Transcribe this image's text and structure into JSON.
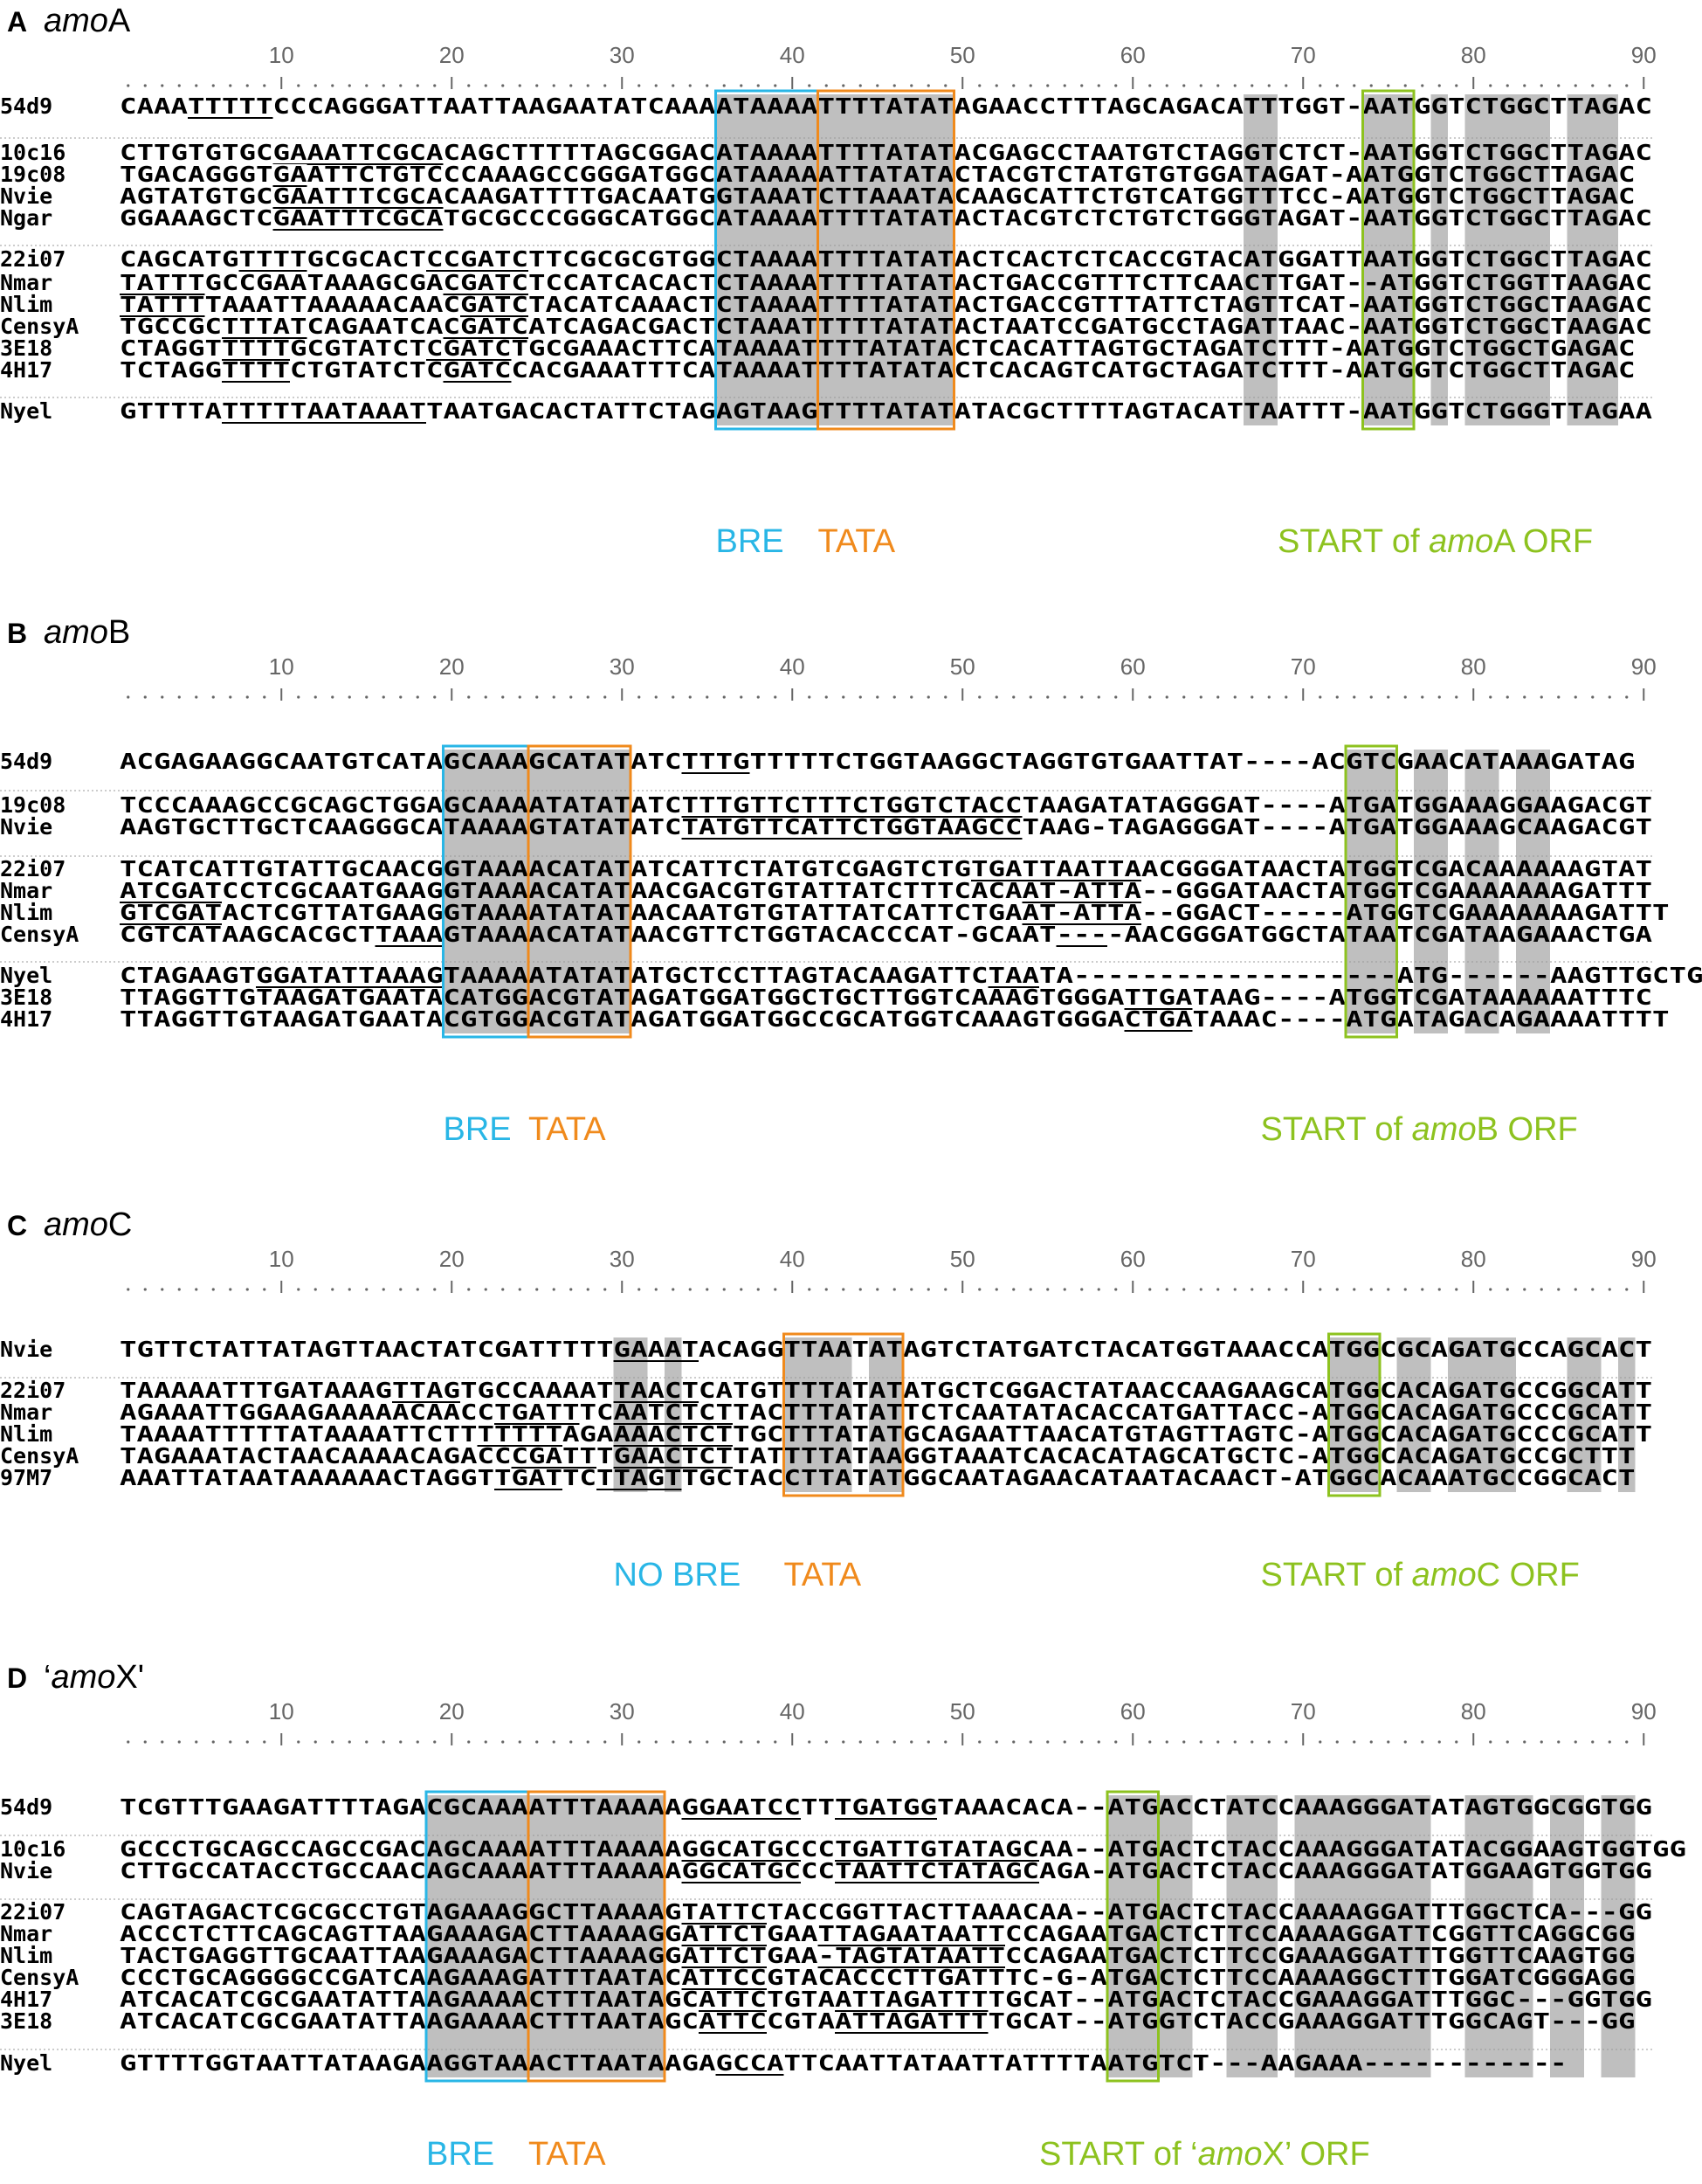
{
  "colors": {
    "bre": "#29b6e6",
    "tata": "#f08a1c",
    "start": "#8dc21f",
    "shade": "#bfbfbf",
    "purple": "#9b30c8",
    "cyan_text": "#29b6e6"
  },
  "ruler": {
    "ticks": [
      "10",
      "20",
      "30",
      "40",
      "50",
      "60",
      "70",
      "80",
      "90"
    ]
  },
  "panels": [
    {
      "id": "A",
      "letter": "A",
      "title_italic": "amo",
      "title_rest": "A",
      "seqs": [
        {
          "name": "54d9",
          "seq": "CAAATTTTTCCCAGGGATTAATTAAGAATATCAAAATAAAATTTTATATAGAACCTTTAGCAGACATTTGGT-AATGGTCTGGCTTAGAC"
        },
        {
          "name": "10c16",
          "seq": "CTTGTGTGCGAAATTCGCACAGCTTTTTAGCGGACATAAAATTTTATATACGAGCCTAATGTCTAGGTCTCT-AATGGTCTGGCTTAGAC"
        },
        {
          "name": "19c08",
          "seq": "TGACAGGGTGAATTCTGTCCCAAAGCCGGGATGGCATAAAAATTATATACTACGTCTATGTGTGGATAGAT-AATGGTCTGGCTTAGAC"
        },
        {
          "name": "Nvie",
          "seq": "AGTATGTGCGAATTTCGCACAAGATTTTGACAATGGTAAATCTTAAATACAAGCATTCTGTCATGGTTTCC-AATGGTCTGGCTTAGAC"
        },
        {
          "name": "Ngar",
          "seq": "GGAAAGCTCGAATTTCGCATGCGCCCGGGCATGGCATAAAATTTTATATACTACGTCTCTGTCTGGGTAGAT-AATGGTCTGGCTTAGAC"
        },
        {
          "name": "22i07",
          "seq": "CAGCATGTTTTGCGCACTCCGATCTTCGCGCGTGGCTAAAATTTTATATACTCACTCTCACCGTACATGGATTAATGGTCTGGCTTAGAC"
        },
        {
          "name": "Nmar",
          "seq": "TATTTGCCGAATAAAGCGACGATCTCCATCACACTCTAAAATTTTATATACTGACCGTTTCTTCAACTTGAT--ATGGTCTGGTTAAGAC"
        },
        {
          "name": "Nlim",
          "seq": "TATTTTAAATTAAAAACAACGATCTACATCAAACTCTAAAATTTTATATACTGACCGTTTATTCTAGTTCAT-AATGGTCTGGCTAAGAC"
        },
        {
          "name": "CensyA",
          "seq": "TGCCGCTTTATCAGAATCACGATCATCAGACGACTCTAAATTTTTATATACTAATCCGATGCCTAGATTAAC-AATGGTCTGGCTAAGAC"
        },
        {
          "name": "3E18",
          "seq": "CTAGGTTTTTGCGTATCTCGATCTGCGAAACTTCATAAAATTTTATATACTCACATTAGTGCTAGATCTTT-AATGGTCTGGCTGAGAC"
        },
        {
          "name": "4H17",
          "seq": "TCTAGGTTTTCTGTATCTCGATCCACGAAATTTCATAAAATTTTATATACTCACAGTCATGCTAGATCTTT-AATGGTCTGGCTTAGAC"
        },
        {
          "name": "Nyel",
          "seq": "GTTTTATTTTTAATAAATTAATGACACTATTCTAGAGTAAGTTTTATATATACGCTTTTAGTACATTAATTT-AATGGTCTGGGTTAGAA"
        }
      ],
      "labels": {
        "bre": "BRE",
        "tata": "TATA",
        "start_prefix": "START of ",
        "start_italic": "amo",
        "start_suffix": "A ORF"
      }
    },
    {
      "id": "B",
      "letter": "B",
      "title_italic": "amo",
      "title_rest": "B",
      "seqs": [
        {
          "name": "54d9",
          "seq": "ACGAGAAGGCAATGTCATAGCAAAGCATATATCTTTGTTTTTCTGGTAAGGCTAGGTGTGAATTAT----ACGTCGAACATAAAGATAG"
        },
        {
          "name": "19c08",
          "seq": "TCCCAAAGCCGCAGCTGGAGCAAAATATATATCTTTGTTCTTTCTGGTCTACCTAAGATATAGGGAT----ATGATGGAAAGGAAGACGT"
        },
        {
          "name": "Nvie",
          "seq": "AAGTGCTTGCTCAAGGGCATAAAAGTATATATCTATGTTCATTCTGGTAAGCCTAAG-TAGAGGGAT----ATGATGGAAAGCAAGACGT"
        },
        {
          "name": "22i07",
          "seq": "TCATCATTGTATTGCAACGGTAAAACATATATCATTCTATGTCGAGTCTGTGATTAATTAACGGGATAACTATGGTCGACAAAAAAGTAT"
        },
        {
          "name": "Nmar",
          "seq": "ATCGATCCTCGCAATGAAGGTAAAACATATAACGACGTGTATTATCTTTCACAAT-ATTA--GGGATAACTATGGTCGAAAAAAAGATTT"
        },
        {
          "name": "Nlim",
          "seq": "GTCGATACTCGTTATGAAGGTAAAATATATAACAATGTGTATTATCATTCTGAAT-ATTA--GGACT-----ATGGTCGAAAAAAAGATTT"
        },
        {
          "name": "CensyA",
          "seq": "CGTCATAAGCACGCTTAAAGTAAAACATATAACGTTCTGGTACACCCAT-GCAAT----AACGGGATGGCTATAATCGATAAGAAACTGA"
        },
        {
          "name": "Nyel",
          "seq": "CTAGAAGTGGATATTAAAGTAAAAATATATATGCTCCTTAGTACAAGATTCTAATA-------------------ATG------AAGTTGCTGC"
        },
        {
          "name": "3E18",
          "seq": "TTAGGTTGTAAGATGAATACATGGACGTATAGATGGATGGCTGCTTGGTCAAAGTGGGATTGATAAG----ATGGTCGATAAAAAATTTC"
        },
        {
          "name": "4H17",
          "seq": "TTAGGTTGTAAGATGAATACGTGGACGTATAGATGGATGGCCGCATGGTCAAAGTGGGACTGATAAAC----ATGATAGACAGAAAATTTT"
        }
      ],
      "labels": {
        "bre": "BRE",
        "tata": "TATA",
        "start_prefix": "START of ",
        "start_italic": "amo",
        "start_suffix": "B ORF"
      }
    },
    {
      "id": "C",
      "letter": "C",
      "title_italic": "amo",
      "title_rest": "C",
      "seqs": [
        {
          "name": "Nvie",
          "seq": "TGTTCTATTATAGTTAACTATCGATTTTTGAAATACAGGTTAATATAGTCTATGATCTACATGGTAAACCATGGCGCAGATGCCAGCACT"
        },
        {
          "name": "22i07",
          "seq": "TAAAAATTTGATAAAGTTAGTGCCAAAATTAACTCATGTTTTATATATGCTCGGACTATAACCAAGAAGCATGGCACAGATGCCGGCATT"
        },
        {
          "name": "Nmar",
          "seq": "AGAAATTGGAAGAAAAACAACCTGATTTCAATCTCTTACTTTATATTCTCAATATACACCATGATTACC-ATGGCACAGATGCCCGCATT"
        },
        {
          "name": "Nlim",
          "seq": "TAAAATTTTTATAAAATTCTTTTTTTAGAAAACTCTTGCTTTATATGCAGAATTAACATGTAGTTAGTC-ATGGCACAGATGCCCGCATT"
        },
        {
          "name": "CensyA",
          "seq": "TAGAAATACTAACAAAACAGACCCGATTTGAACTCTTATTTTATAAGGTAAATCACACATAGCATGCTC-ATGGCACAGATGCCGCTTT"
        },
        {
          "name": "97M7",
          "seq": "AAATTATAATAAAAAACTAGGTTGATTCTTAGTTGCTACCTTATATGGCAATAGAACATAATACAACT-ATGGCACAAATGCCGGCACT"
        }
      ],
      "labels": {
        "bre": "NO BRE",
        "tata": "TATA",
        "start_prefix": "START of ",
        "start_italic": "amo",
        "start_suffix": "C ORF"
      }
    },
    {
      "id": "D",
      "letter": "D",
      "title_italic": "amo",
      "title_rest": "X'",
      "title_prefix": "‘",
      "seqs": [
        {
          "name": "54d9",
          "seq": "TCGTTTGAAGATTTTAGACGCAAAATTTAAAAAGGAATCCTTTGATGGTAAACACA--ATGACCTATCCAAAGGGATATAGTGGCGGTGG"
        },
        {
          "name": "10c16",
          "seq": "GCCCTGCAGCCAGCCGACAGCAAAATTTAAAAAGGCATGCCCTGATTGTATAGCAA--ATGACTCTACCAAAGGGATATACGGAAGTGGTGG"
        },
        {
          "name": "Nvie",
          "seq": "CTTGCCATACCTGCCAACAGCAAAATTTAAAAAGGCATGCCCTAATTCTATAGCAGA-ATGACTCTACCAAAGGGATATGGAAGTGGTGG"
        },
        {
          "name": "22i07",
          "seq": "CAGTAGACTCGCGCCTGTAGAAAGGCTTAAAAGTATTCTACCGGTTACTTAAACAA--ATGACTCTACCAAAAGGATTTGGCTCA---GG"
        },
        {
          "name": "Nmar",
          "seq": "ACCCTCTTCAGCAGTTAAGAAAGACTTAAAAGGATTCTGAATTAGAATAATTCCAGAATGACTCTTCCAAAAGGATTCGGTTCAGGCGG"
        },
        {
          "name": "Nlim",
          "seq": "TACTGAGGTTGCAATTAAGAAAGACTTAAAAGGATTCTGAA-TAGTATAATTCCAGAATGACTCTTCCGAAAGGATTTGGTTCAAGTGG"
        },
        {
          "name": "CensyA",
          "seq": "CCCTGCAGGGGCCGATCAAGAAAGATTTAATACATTCCGTACACCCTTGATTTC-G-ATGACTCTTCCAAAAGGCTTTGGATCGGGAGG"
        },
        {
          "name": "4H17",
          "seq": "ATCACATCGCGAATATTAAGAAAACTTTAATAGCATTCTGTAATTAGATTTTGCAT--ATGACTCTACCGAAAGGATTTGGC---GGTGG"
        },
        {
          "name": "3E18",
          "seq": "ATCACATCGCGAATATTAAGAAAACTTTAATAGCATTCCGTAATTAGATTTTGCAT--ATGGTCTACCGAAAGGATTTGGCAGT---GG"
        },
        {
          "name": "Nyel",
          "seq": "GTTTTGGTAATTATAAGAAGGTAAACTTAATAAGAGCCATTCAATTATAATTATTTTAATGTCT---AAGAAA------------"
        }
      ],
      "labels": {
        "bre": "BRE",
        "tata": "TATA",
        "start_prefix": "START of ",
        "start_italic": "amo",
        "start_suffix": "X’ ORF",
        "start_quote": "‘"
      }
    }
  ]
}
